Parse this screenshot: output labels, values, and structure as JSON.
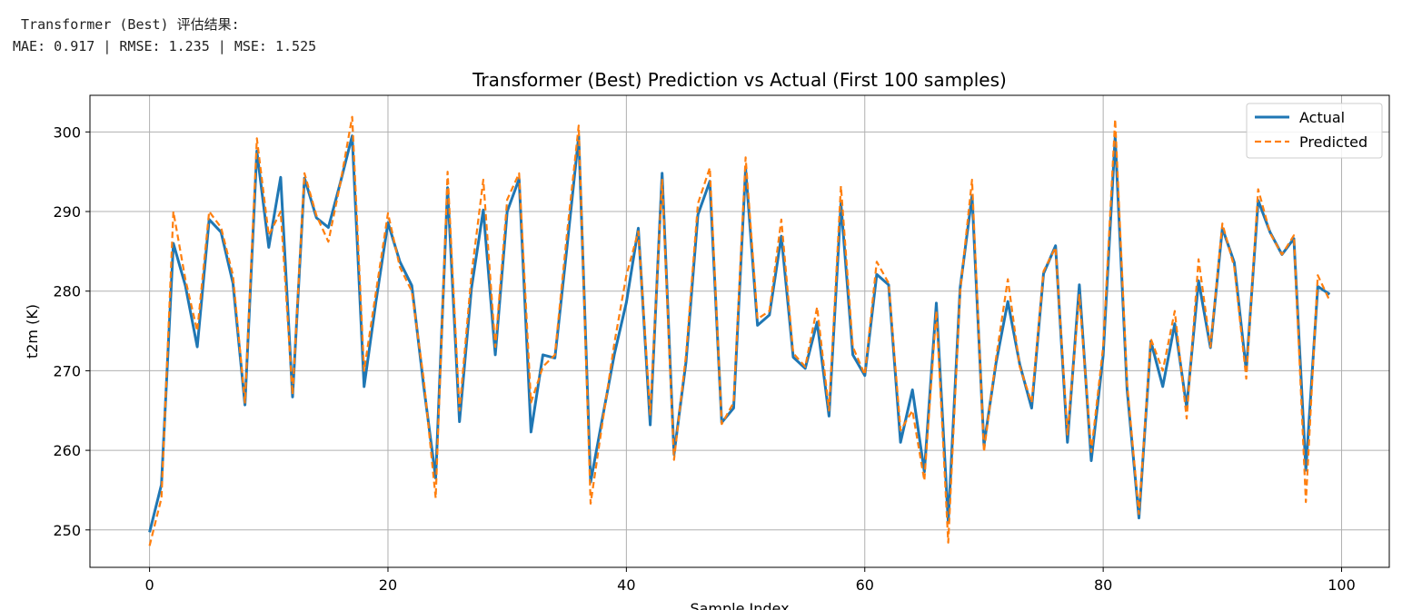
{
  "output": {
    "header": " Transformer (Best) 评估结果:",
    "metrics": "MAE: 0.917 | RMSE: 1.235 | MSE: 1.525"
  },
  "chart_data": {
    "type": "line",
    "title": "Transformer (Best) Prediction vs Actual (First 100 samples)",
    "xlabel": "Sample Index",
    "ylabel": "t2m (K)",
    "xlim": [
      -5,
      104
    ],
    "ylim": [
      245.3,
      304.6
    ],
    "xticks": [
      0,
      20,
      40,
      60,
      80,
      100
    ],
    "yticks": [
      250,
      260,
      270,
      280,
      290,
      300
    ],
    "grid": true,
    "legend_position": "top-right",
    "series": [
      {
        "name": "Actual",
        "color": "#1f77b4",
        "style": "solid",
        "values": [
          249.7,
          255.7,
          286.0,
          280.7,
          273.0,
          289.0,
          287.4,
          281.0,
          265.7,
          297.6,
          285.5,
          294.3,
          266.7,
          294.2,
          289.2,
          288.0,
          293.6,
          299.5,
          268.0,
          278.8,
          288.6,
          283.7,
          280.7,
          268.1,
          256.5,
          293.0,
          263.6,
          280.3,
          290.2,
          272.0,
          290.0,
          294.1,
          262.3,
          272.0,
          271.6,
          285.3,
          299.5,
          256.0,
          264.1,
          272.1,
          278.6,
          287.9,
          263.2,
          294.8,
          259.5,
          271.1,
          289.6,
          293.8,
          263.5,
          265.3,
          295.4,
          275.7,
          277.0,
          286.9,
          271.7,
          270.3,
          276.1,
          264.3,
          291.0,
          272.0,
          269.4,
          282.1,
          280.8,
          261.0,
          267.6,
          257.3,
          278.5,
          251.0,
          280.4,
          292.0,
          260.6,
          270.9,
          278.7,
          270.8,
          265.3,
          282.2,
          285.7,
          261.0,
          280.8,
          258.7,
          271.9,
          299.4,
          267.7,
          251.5,
          273.7,
          268.0,
          275.9,
          265.4,
          281.3,
          272.9,
          287.9,
          283.6,
          270.0,
          291.4,
          287.4,
          284.6,
          286.6,
          257.5,
          280.6,
          279.6
        ]
      },
      {
        "name": "Predicted",
        "color": "#ff7f0e",
        "style": "dashed",
        "values": [
          248.0,
          254.0,
          290.0,
          281.5,
          275.0,
          290.0,
          288.0,
          282.0,
          266.0,
          299.2,
          287.0,
          290.0,
          267.0,
          294.8,
          289.5,
          286.2,
          293.5,
          301.9,
          270.0,
          280.0,
          289.8,
          283.0,
          280.0,
          269.0,
          254.0,
          295.0,
          265.0,
          282.0,
          294.0,
          273.0,
          291.5,
          294.8,
          266.0,
          270.5,
          272.0,
          287.0,
          300.8,
          253.3,
          263.5,
          273.5,
          282.0,
          287.5,
          264.5,
          294.0,
          258.8,
          272.0,
          291.0,
          295.5,
          263.3,
          266.0,
          296.8,
          276.5,
          277.5,
          289.0,
          272.2,
          270.5,
          278.0,
          265.0,
          293.2,
          273.0,
          269.5,
          283.7,
          281.0,
          262.5,
          265.0,
          256.2,
          277.5,
          248.4,
          280.0,
          294.0,
          259.8,
          271.5,
          281.5,
          270.5,
          266.0,
          282.5,
          285.5,
          262.0,
          279.5,
          259.8,
          273.0,
          301.6,
          268.5,
          252.0,
          274.0,
          270.0,
          277.5,
          264.0,
          284.0,
          273.0,
          288.5,
          283.0,
          269.0,
          292.8,
          287.3,
          284.6,
          287.0,
          253.5,
          282.0,
          278.8
        ]
      }
    ]
  }
}
